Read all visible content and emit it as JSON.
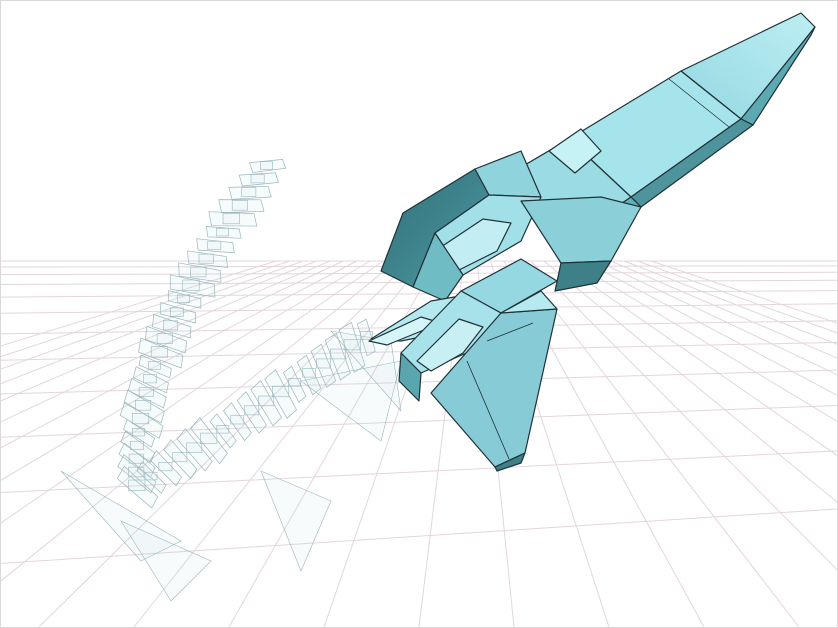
{
  "scene": {
    "colors": {
      "background": "#ffffff",
      "grid": "#e3d6dd",
      "hull_light": "#a8e3ea",
      "hull_mid": "#7fc9d3",
      "hull_dark": "#3f7f86",
      "outline": "#203238",
      "trail": "#8aaab2"
    }
  }
}
